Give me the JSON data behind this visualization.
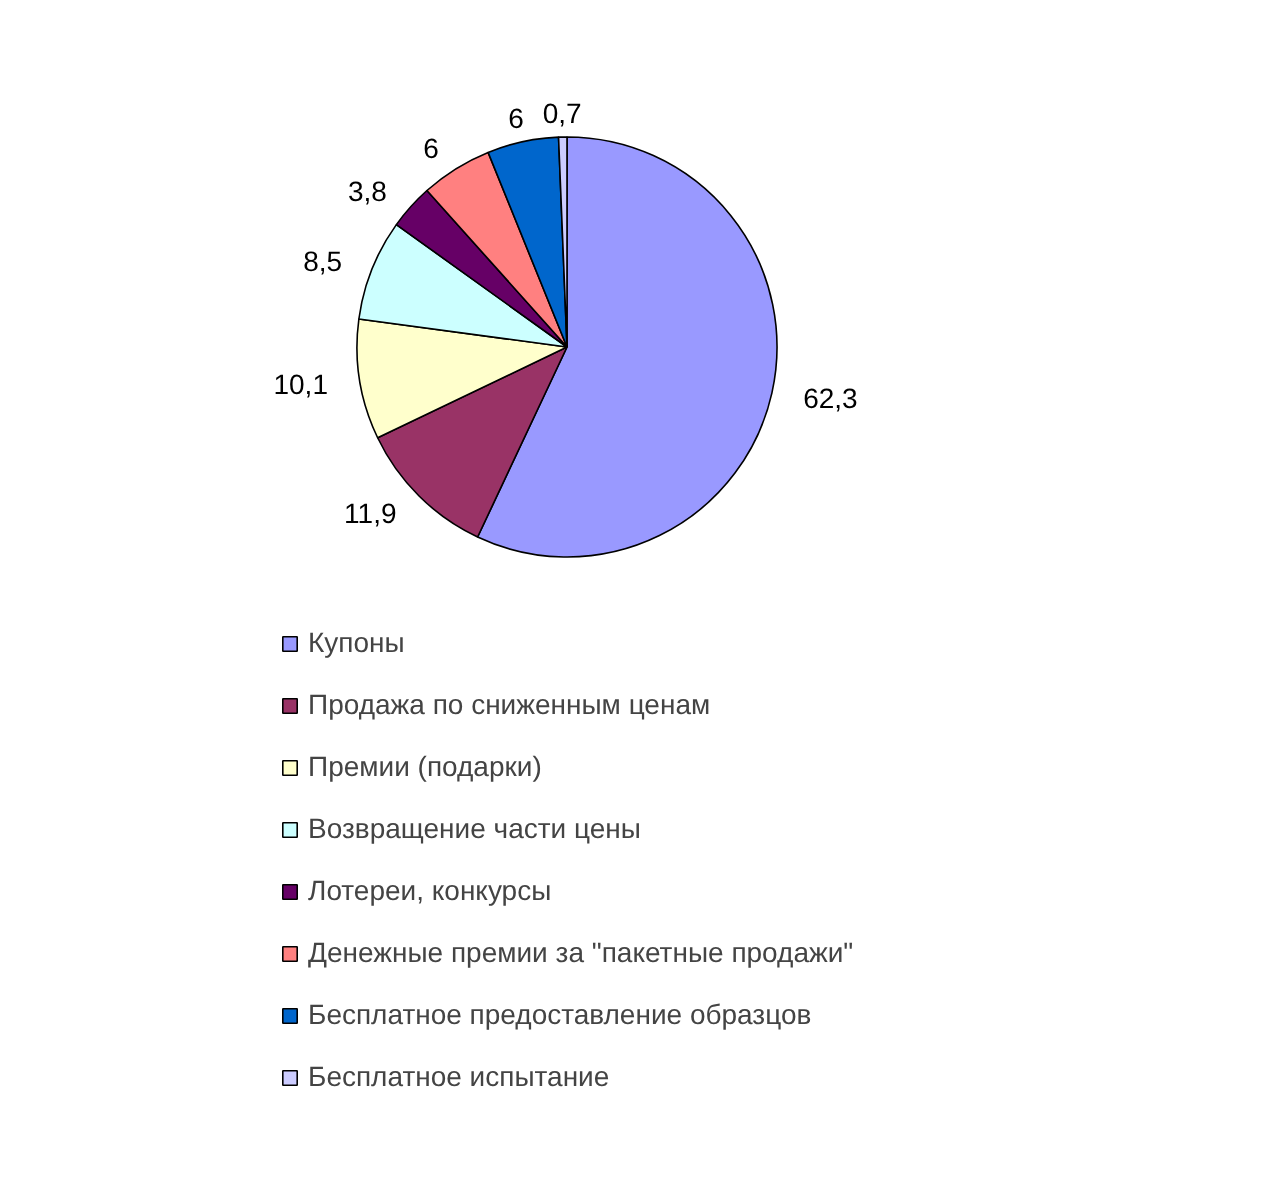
{
  "chart_data": {
    "type": "pie",
    "categories": [
      "Купоны",
      "Продажа по сниженным ценам",
      "Премии (подарки)",
      "Возвращение части цены",
      "Лотереи, конкурсы",
      "Денежные премии за \"пакетные продажи\"",
      "Бесплатное предоставление образцов",
      "Бесплатное испытание"
    ],
    "values": [
      62.3,
      11.9,
      10.1,
      8.5,
      3.8,
      6,
      6,
      0.7
    ],
    "value_labels": [
      "62,3",
      "11,9",
      "10,1",
      "8,5",
      "3,8",
      "6",
      "6",
      "0,7"
    ],
    "colors": [
      "#9999ff",
      "#993366",
      "#ffffcc",
      "#ccffff",
      "#660066",
      "#ff8080",
      "#0066cc",
      "#ccccff"
    ],
    "legend": "bottom"
  }
}
